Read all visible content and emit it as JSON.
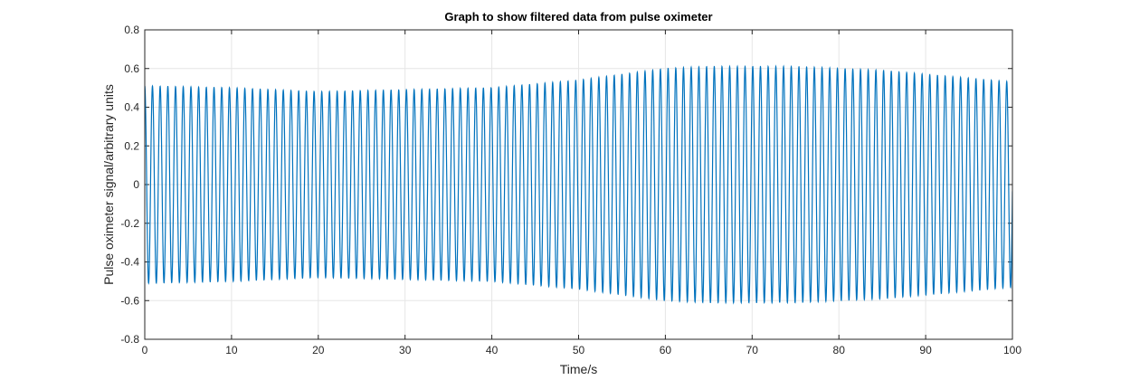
{
  "chart_data": {
    "type": "line",
    "title": "Graph to show filtered data from pulse oximeter",
    "xlabel": "Time/s",
    "ylabel": "Pulse oximeter signal/arbitrary units",
    "xlim": [
      0,
      100
    ],
    "ylim": [
      -0.8,
      0.8
    ],
    "xticks": [
      0,
      10,
      20,
      30,
      40,
      50,
      60,
      70,
      80,
      90,
      100
    ],
    "yticks": [
      -0.8,
      -0.6,
      -0.4,
      -0.2,
      0,
      0.2,
      0.4,
      0.6,
      0.8
    ],
    "xtick_labels": [
      "0",
      "10",
      "20",
      "30",
      "40",
      "50",
      "60",
      "70",
      "80",
      "90",
      "100"
    ],
    "ytick_labels": [
      "-0.8",
      "-0.6",
      "-0.4",
      "-0.2",
      "0",
      "0.2",
      "0.4",
      "0.6",
      "0.8"
    ],
    "grid": true,
    "line_color": "#0072BD",
    "series": [
      {
        "pulse_period_s": 0.887,
        "amplitude_envelope": {
          "t": [
            0,
            10,
            20,
            30,
            40,
            50,
            55,
            60,
            65,
            70,
            75,
            80,
            85,
            90,
            95,
            100
          ],
          "amp": [
            0.51,
            0.5,
            0.48,
            0.49,
            0.5,
            0.54,
            0.57,
            0.6,
            0.61,
            0.61,
            0.61,
            0.6,
            0.59,
            0.57,
            0.55,
            0.53
          ]
        }
      }
    ]
  }
}
